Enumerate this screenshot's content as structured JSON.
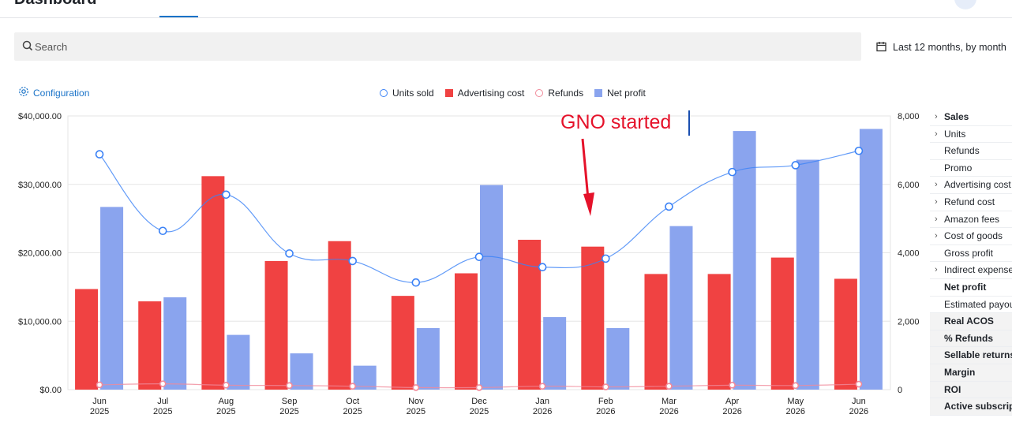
{
  "header": {
    "title": "Dashboard"
  },
  "search": {
    "placeholder": "Search"
  },
  "date_range": {
    "label": "Last 12 months, by month"
  },
  "configuration": {
    "label": "Configuration"
  },
  "legend": [
    {
      "label": "Units sold",
      "shape": "circle",
      "color": "#3b82f6"
    },
    {
      "label": "Advertising cost",
      "shape": "square",
      "color": "#f04242"
    },
    {
      "label": "Refunds",
      "shape": "circle",
      "color": "#f08a9a"
    },
    {
      "label": "Net profit",
      "shape": "square",
      "color": "#8aa4ee"
    }
  ],
  "annotation": {
    "text": "GNO started",
    "color": "#e5122a"
  },
  "metrics": [
    {
      "label": "Sales",
      "expandable": true,
      "bold": true,
      "shaded": false
    },
    {
      "label": "Units",
      "expandable": true,
      "bold": false,
      "shaded": false
    },
    {
      "label": "Refunds",
      "expandable": false,
      "bold": false,
      "shaded": false
    },
    {
      "label": "Promo",
      "expandable": false,
      "bold": false,
      "shaded": false
    },
    {
      "label": "Advertising cost",
      "expandable": true,
      "bold": false,
      "shaded": false
    },
    {
      "label": "Refund cost",
      "expandable": true,
      "bold": false,
      "shaded": false
    },
    {
      "label": "Amazon fees",
      "expandable": true,
      "bold": false,
      "shaded": false
    },
    {
      "label": "Cost of goods",
      "expandable": true,
      "bold": false,
      "shaded": false
    },
    {
      "label": "Gross profit",
      "expandable": false,
      "bold": false,
      "shaded": false
    },
    {
      "label": "Indirect expenses",
      "expandable": true,
      "bold": false,
      "shaded": false
    },
    {
      "label": "Net profit",
      "expandable": false,
      "bold": true,
      "shaded": false
    },
    {
      "label": "Estimated payout",
      "expandable": false,
      "bold": false,
      "shaded": false
    },
    {
      "label": "Real ACOS",
      "expandable": false,
      "bold": true,
      "shaded": true
    },
    {
      "label": "% Refunds",
      "expandable": false,
      "bold": true,
      "shaded": true
    },
    {
      "label": "Sellable returns",
      "expandable": false,
      "bold": true,
      "shaded": true
    },
    {
      "label": "Margin",
      "expandable": false,
      "bold": true,
      "shaded": true
    },
    {
      "label": "ROI",
      "expandable": false,
      "bold": true,
      "shaded": true
    },
    {
      "label": "Active subscriptions",
      "expandable": false,
      "bold": true,
      "shaded": true
    }
  ],
  "chart_data": {
    "type": "bar",
    "categories": [
      [
        "Jun",
        "2025"
      ],
      [
        "Jul",
        "2025"
      ],
      [
        "Aug",
        "2025"
      ],
      [
        "Sep",
        "2025"
      ],
      [
        "Oct",
        "2025"
      ],
      [
        "Nov",
        "2025"
      ],
      [
        "Dec",
        "2025"
      ],
      [
        "Jan",
        "2026"
      ],
      [
        "Feb",
        "2026"
      ],
      [
        "Mar",
        "2026"
      ],
      [
        "Apr",
        "2026"
      ],
      [
        "May",
        "2026"
      ],
      [
        "Jun",
        "2026"
      ]
    ],
    "left_axis": {
      "min": 0,
      "max": 40000,
      "ticks": [
        "$0.00",
        "$10,000.00",
        "$20,000.00",
        "$30,000.00",
        "$40,000.00"
      ]
    },
    "right_axis": {
      "min": 0,
      "max": 8000,
      "ticks": [
        "0",
        "2,000",
        "4,000",
        "6,000",
        "8,000"
      ]
    },
    "grid": true,
    "series": [
      {
        "name": "Advertising cost",
        "kind": "bar",
        "axis": "left",
        "color": "#f04242",
        "values": [
          14700,
          12900,
          31200,
          18800,
          21700,
          13700,
          17000,
          21900,
          20900,
          16900,
          16900,
          19300,
          16200
        ]
      },
      {
        "name": "Net profit",
        "kind": "bar",
        "axis": "left",
        "color": "#8aa4ee",
        "values": [
          26700,
          13500,
          8000,
          5300,
          3500,
          9000,
          29900,
          10600,
          9000,
          23900,
          37800,
          33600,
          38100
        ]
      },
      {
        "name": "Units sold",
        "kind": "line",
        "axis": "right",
        "color": "#3b82f6",
        "values": [
          6880,
          4640,
          5700,
          3980,
          3760,
          3130,
          3880,
          3580,
          3830,
          5350,
          6360,
          6560,
          6980
        ]
      },
      {
        "name": "Refunds",
        "kind": "line",
        "axis": "right",
        "color": "#f08a9a",
        "values": [
          140,
          170,
          130,
          120,
          100,
          60,
          60,
          100,
          80,
          100,
          130,
          120,
          160
        ]
      }
    ]
  }
}
